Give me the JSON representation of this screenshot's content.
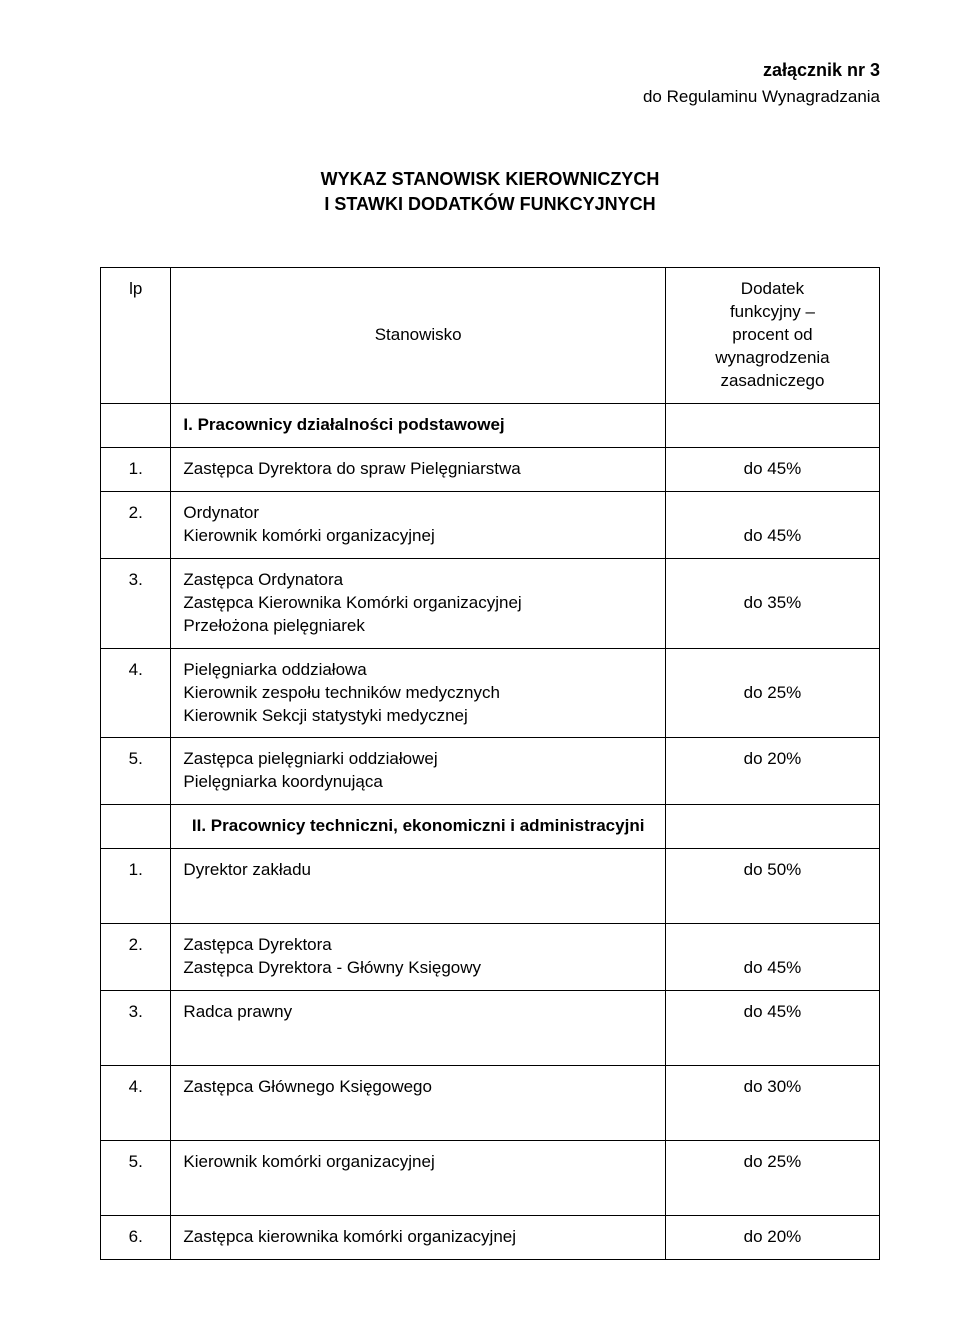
{
  "header": {
    "attachment": "załącznik nr 3",
    "subline": "do Regulaminu Wynagradzania"
  },
  "title": {
    "line1": "WYKAZ STANOWISK KIEROWNICZYCH",
    "line2": "I STAWKI DODATKÓW FUNKCYJNYCH"
  },
  "table_head": {
    "lp": "lp",
    "stanowisko": "Stanowisko",
    "dodatek_l1": "Dodatek",
    "dodatek_l2": "funkcyjny –",
    "dodatek_l3": "procent od",
    "dodatek_l4": "wynagrodzenia",
    "dodatek_l5": "zasadniczego"
  },
  "section1": {
    "title": "I. Pracownicy działalności podstawowej",
    "rows": [
      {
        "lp": "1.",
        "stan": "Zastępca Dyrektora do spraw  Pielęgniarstwa",
        "val": "do 45%"
      },
      {
        "lp": "2.",
        "stan_l1": "Ordynator",
        "stan_l2": "Kierownik komórki organizacyjnej",
        "val": "do 45%"
      },
      {
        "lp": "3.",
        "stan_l1": "Zastępca Ordynatora",
        "stan_l2": "Zastępca Kierownika Komórki organizacyjnej",
        "stan_l3": "Przełożona pielęgniarek",
        "val": "do 35%"
      },
      {
        "lp": "4.",
        "stan_l1": "Pielęgniarka oddziałowa",
        "stan_l2": "Kierownik zespołu techników medycznych",
        "stan_l3": "Kierownik Sekcji statystyki medycznej",
        "val": "do 25%"
      },
      {
        "lp": "5.",
        "stan_l1": "Zastępca pielęgniarki oddziałowej",
        "stan_l2": "Pielęgniarka koordynująca",
        "val": "do 20%"
      }
    ]
  },
  "section2": {
    "title": "II. Pracownicy techniczni, ekonomiczni i administracyjni",
    "rows": [
      {
        "lp": "1.",
        "stan": "Dyrektor zakładu",
        "val": "do 50%"
      },
      {
        "lp": "2.",
        "stan_l1": "Zastępca Dyrektora",
        "stan_l2": "Zastępca Dyrektora - Główny Księgowy",
        "val": "do 45%"
      },
      {
        "lp": "3.",
        "stan": "Radca prawny",
        "val": "do 45%"
      },
      {
        "lp": "4.",
        "stan": "Zastępca Głównego Księgowego",
        "val": "do 30%"
      },
      {
        "lp": "5.",
        "stan": "Kierownik komórki organizacyjnej",
        "val": "do 25%"
      },
      {
        "lp": "6.",
        "stan": "Zastępca kierownika komórki organizacyjnej",
        "val": "do 20%"
      }
    ]
  }
}
